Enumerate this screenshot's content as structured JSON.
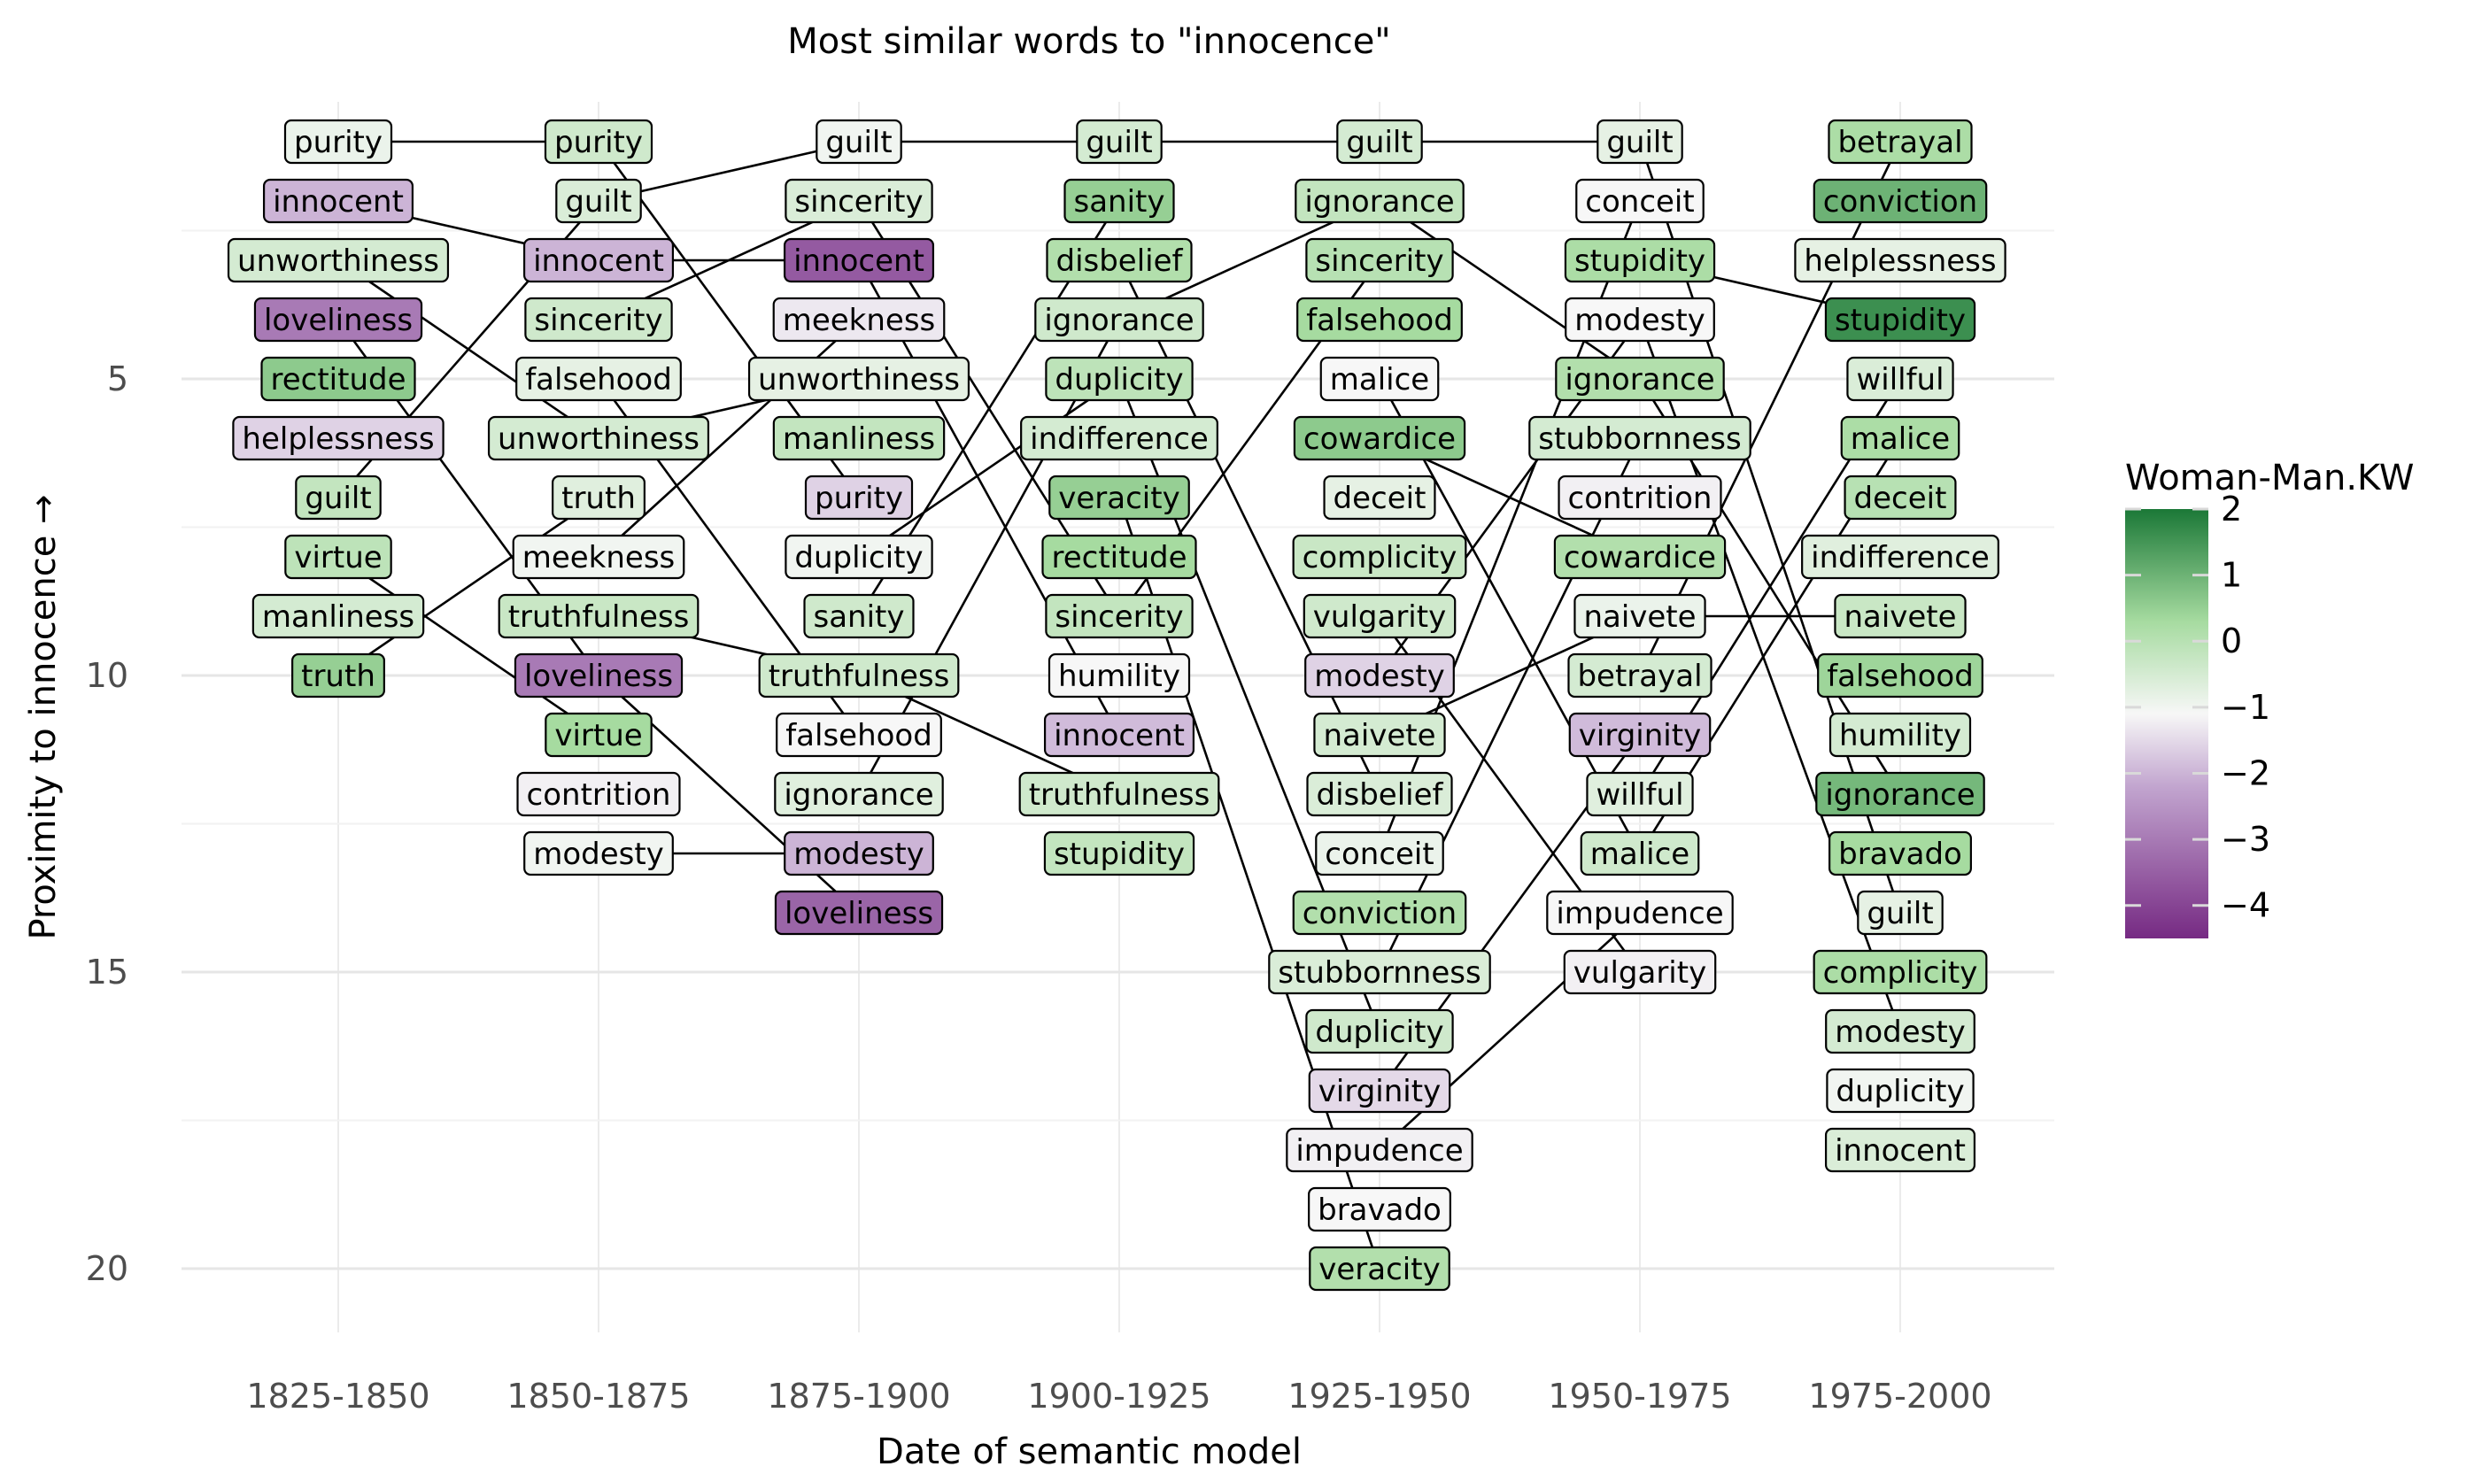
{
  "chart_data": {
    "type": "bump",
    "title": "Most similar words to \"innocence\"",
    "xlabel": "Date of semantic model",
    "ylabel": "Proximity to innocence →",
    "x_categories": [
      "1825-1850",
      "1850-1875",
      "1875-1900",
      "1900-1925",
      "1925-1950",
      "1950-1975",
      "1975-2000"
    ],
    "y_ticks": [
      5,
      10,
      15,
      20
    ],
    "ylim": [
      1,
      20
    ],
    "y_reversed": true,
    "grid": true,
    "legend": {
      "title": "Woman-Man.KW",
      "position": "right",
      "range": [
        -4.5,
        2
      ],
      "ticks": [
        2,
        1,
        0,
        -1,
        -2,
        -3,
        -4
      ],
      "tick_labels": [
        "2",
        "1",
        "0",
        "−1",
        "−2",
        "−3",
        "−4"
      ],
      "colors": {
        "low": "#7b2d8e",
        "mid": "#f7f7f7",
        "high": "#1b7837"
      }
    },
    "columns": [
      {
        "period": "1825-1850",
        "words": [
          {
            "word": "purity",
            "rank": 1,
            "value": -0.9
          },
          {
            "word": "innocent",
            "rank": 2,
            "value": -2.0
          },
          {
            "word": "unworthiness",
            "rank": 3,
            "value": -0.5
          },
          {
            "word": "loveliness",
            "rank": 4,
            "value": -3.0
          },
          {
            "word": "rectitude",
            "rank": 5,
            "value": 0.6
          },
          {
            "word": "helplessness",
            "rank": 6,
            "value": -1.6
          },
          {
            "word": "guilt",
            "rank": 7,
            "value": -0.2
          },
          {
            "word": "virtue",
            "rank": 8,
            "value": -0.1
          },
          {
            "word": "manliness",
            "rank": 9,
            "value": -0.5
          },
          {
            "word": "truth",
            "rank": 10,
            "value": 0.5
          }
        ]
      },
      {
        "period": "1850-1875",
        "words": [
          {
            "word": "purity",
            "rank": 1,
            "value": -0.4
          },
          {
            "word": "guilt",
            "rank": 2,
            "value": -0.6
          },
          {
            "word": "innocent",
            "rank": 3,
            "value": -2.0
          },
          {
            "word": "sincerity",
            "rank": 4,
            "value": -0.4
          },
          {
            "word": "falsehood",
            "rank": 5,
            "value": -0.8
          },
          {
            "word": "unworthiness",
            "rank": 6,
            "value": -0.5
          },
          {
            "word": "truth",
            "rank": 7,
            "value": -0.7
          },
          {
            "word": "meekness",
            "rank": 8,
            "value": -1.0
          },
          {
            "word": "truthfulness",
            "rank": 9,
            "value": -0.3
          },
          {
            "word": "loveliness",
            "rank": 10,
            "value": -3.0
          },
          {
            "word": "virtue",
            "rank": 11,
            "value": 0.3
          },
          {
            "word": "contrition",
            "rank": 12,
            "value": -1.2
          },
          {
            "word": "modesty",
            "rank": 13,
            "value": -1.0
          }
        ]
      },
      {
        "period": "1875-1900",
        "words": [
          {
            "word": "guilt",
            "rank": 1,
            "value": -1.0
          },
          {
            "word": "sincerity",
            "rank": 2,
            "value": -0.6
          },
          {
            "word": "innocent",
            "rank": 3,
            "value": -3.6
          },
          {
            "word": "meekness",
            "rank": 4,
            "value": -1.3
          },
          {
            "word": "unworthiness",
            "rank": 5,
            "value": -0.8
          },
          {
            "word": "manliness",
            "rank": 6,
            "value": -0.2
          },
          {
            "word": "purity",
            "rank": 7,
            "value": -1.6
          },
          {
            "word": "duplicity",
            "rank": 8,
            "value": -1.0
          },
          {
            "word": "sanity",
            "rank": 9,
            "value": -0.4
          },
          {
            "word": "truthfulness",
            "rank": 10,
            "value": -0.4
          },
          {
            "word": "falsehood",
            "rank": 11,
            "value": -1.1
          },
          {
            "word": "ignorance",
            "rank": 12,
            "value": -0.7
          },
          {
            "word": "modesty",
            "rank": 13,
            "value": -2.0
          },
          {
            "word": "loveliness",
            "rank": 14,
            "value": -3.4
          }
        ]
      },
      {
        "period": "1900-1925",
        "words": [
          {
            "word": "guilt",
            "rank": 1,
            "value": -0.5
          },
          {
            "word": "sanity",
            "rank": 2,
            "value": 0.5
          },
          {
            "word": "disbelief",
            "rank": 3,
            "value": 0.1
          },
          {
            "word": "ignorance",
            "rank": 4,
            "value": -0.4
          },
          {
            "word": "duplicity",
            "rank": 5,
            "value": -0.1
          },
          {
            "word": "indifference",
            "rank": 6,
            "value": -0.5
          },
          {
            "word": "veracity",
            "rank": 7,
            "value": 0.5
          },
          {
            "word": "rectitude",
            "rank": 8,
            "value": 0.3
          },
          {
            "word": "sincerity",
            "rank": 9,
            "value": -0.2
          },
          {
            "word": "humility",
            "rank": 10,
            "value": -1.1
          },
          {
            "word": "innocent",
            "rank": 11,
            "value": -1.9
          },
          {
            "word": "truthfulness",
            "rank": 12,
            "value": -0.4
          },
          {
            "word": "stupidity",
            "rank": 13,
            "value": -0.2
          }
        ]
      },
      {
        "period": "1925-1950",
        "words": [
          {
            "word": "guilt",
            "rank": 1,
            "value": -0.5
          },
          {
            "word": "ignorance",
            "rank": 2,
            "value": -0.2
          },
          {
            "word": "sincerity",
            "rank": 3,
            "value": 0.0
          },
          {
            "word": "falsehood",
            "rank": 4,
            "value": 0.3
          },
          {
            "word": "malice",
            "rank": 5,
            "value": -1.1
          },
          {
            "word": "cowardice",
            "rank": 6,
            "value": 0.6
          },
          {
            "word": "deceit",
            "rank": 7,
            "value": -0.8
          },
          {
            "word": "complicity",
            "rank": 8,
            "value": -0.3
          },
          {
            "word": "vulgarity",
            "rank": 9,
            "value": -0.4
          },
          {
            "word": "modesty",
            "rank": 10,
            "value": -1.6
          },
          {
            "word": "naivete",
            "rank": 11,
            "value": -0.5
          },
          {
            "word": "disbelief",
            "rank": 12,
            "value": -0.6
          },
          {
            "word": "conceit",
            "rank": 13,
            "value": -0.9
          },
          {
            "word": "conviction",
            "rank": 14,
            "value": 0.1
          },
          {
            "word": "stubbornness",
            "rank": 15,
            "value": -0.6
          },
          {
            "word": "duplicity",
            "rank": 16,
            "value": -0.4
          },
          {
            "word": "virginity",
            "rank": 17,
            "value": -1.5
          },
          {
            "word": "impudence",
            "rank": 18,
            "value": -1.2
          },
          {
            "word": "bravado",
            "rank": 19,
            "value": -1.1
          },
          {
            "word": "veracity",
            "rank": 20,
            "value": 0.1
          }
        ]
      },
      {
        "period": "1950-1975",
        "words": [
          {
            "word": "guilt",
            "rank": 1,
            "value": -0.8
          },
          {
            "word": "conceit",
            "rank": 2,
            "value": -1.1
          },
          {
            "word": "stupidity",
            "rank": 3,
            "value": 0.2
          },
          {
            "word": "modesty",
            "rank": 4,
            "value": -1.1
          },
          {
            "word": "ignorance",
            "rank": 5,
            "value": 0.1
          },
          {
            "word": "stubbornness",
            "rank": 6,
            "value": -0.5
          },
          {
            "word": "contrition",
            "rank": 7,
            "value": -1.2
          },
          {
            "word": "cowardice",
            "rank": 8,
            "value": 0.1
          },
          {
            "word": "naivete",
            "rank": 9,
            "value": -0.9
          },
          {
            "word": "betrayal",
            "rank": 10,
            "value": -0.5
          },
          {
            "word": "virginity",
            "rank": 11,
            "value": -1.9
          },
          {
            "word": "willful",
            "rank": 12,
            "value": -0.7
          },
          {
            "word": "malice",
            "rank": 13,
            "value": -0.4
          },
          {
            "word": "impudence",
            "rank": 14,
            "value": -1.1
          },
          {
            "word": "vulgarity",
            "rank": 15,
            "value": -1.2
          }
        ]
      },
      {
        "period": "1975-2000",
        "words": [
          {
            "word": "betrayal",
            "rank": 1,
            "value": 0.2
          },
          {
            "word": "conviction",
            "rank": 2,
            "value": 1.0
          },
          {
            "word": "helplessness",
            "rank": 3,
            "value": -0.8
          },
          {
            "word": "stupidity",
            "rank": 4,
            "value": 1.6
          },
          {
            "word": "willful",
            "rank": 5,
            "value": -0.6
          },
          {
            "word": "malice",
            "rank": 6,
            "value": 0.2
          },
          {
            "word": "deceit",
            "rank": 7,
            "value": 0.0
          },
          {
            "word": "indifference",
            "rank": 8,
            "value": -0.7
          },
          {
            "word": "naivete",
            "rank": 9,
            "value": -0.3
          },
          {
            "word": "falsehood",
            "rank": 10,
            "value": 0.4
          },
          {
            "word": "humility",
            "rank": 11,
            "value": -0.5
          },
          {
            "word": "ignorance",
            "rank": 12,
            "value": 0.9
          },
          {
            "word": "bravado",
            "rank": 13,
            "value": 0.3
          },
          {
            "word": "guilt",
            "rank": 14,
            "value": -0.8
          },
          {
            "word": "complicity",
            "rank": 15,
            "value": 0.2
          },
          {
            "word": "modesty",
            "rank": 16,
            "value": -0.5
          },
          {
            "word": "duplicity",
            "rank": 17,
            "value": -1.0
          },
          {
            "word": "innocent",
            "rank": 18,
            "value": -0.6
          }
        ]
      }
    ]
  }
}
